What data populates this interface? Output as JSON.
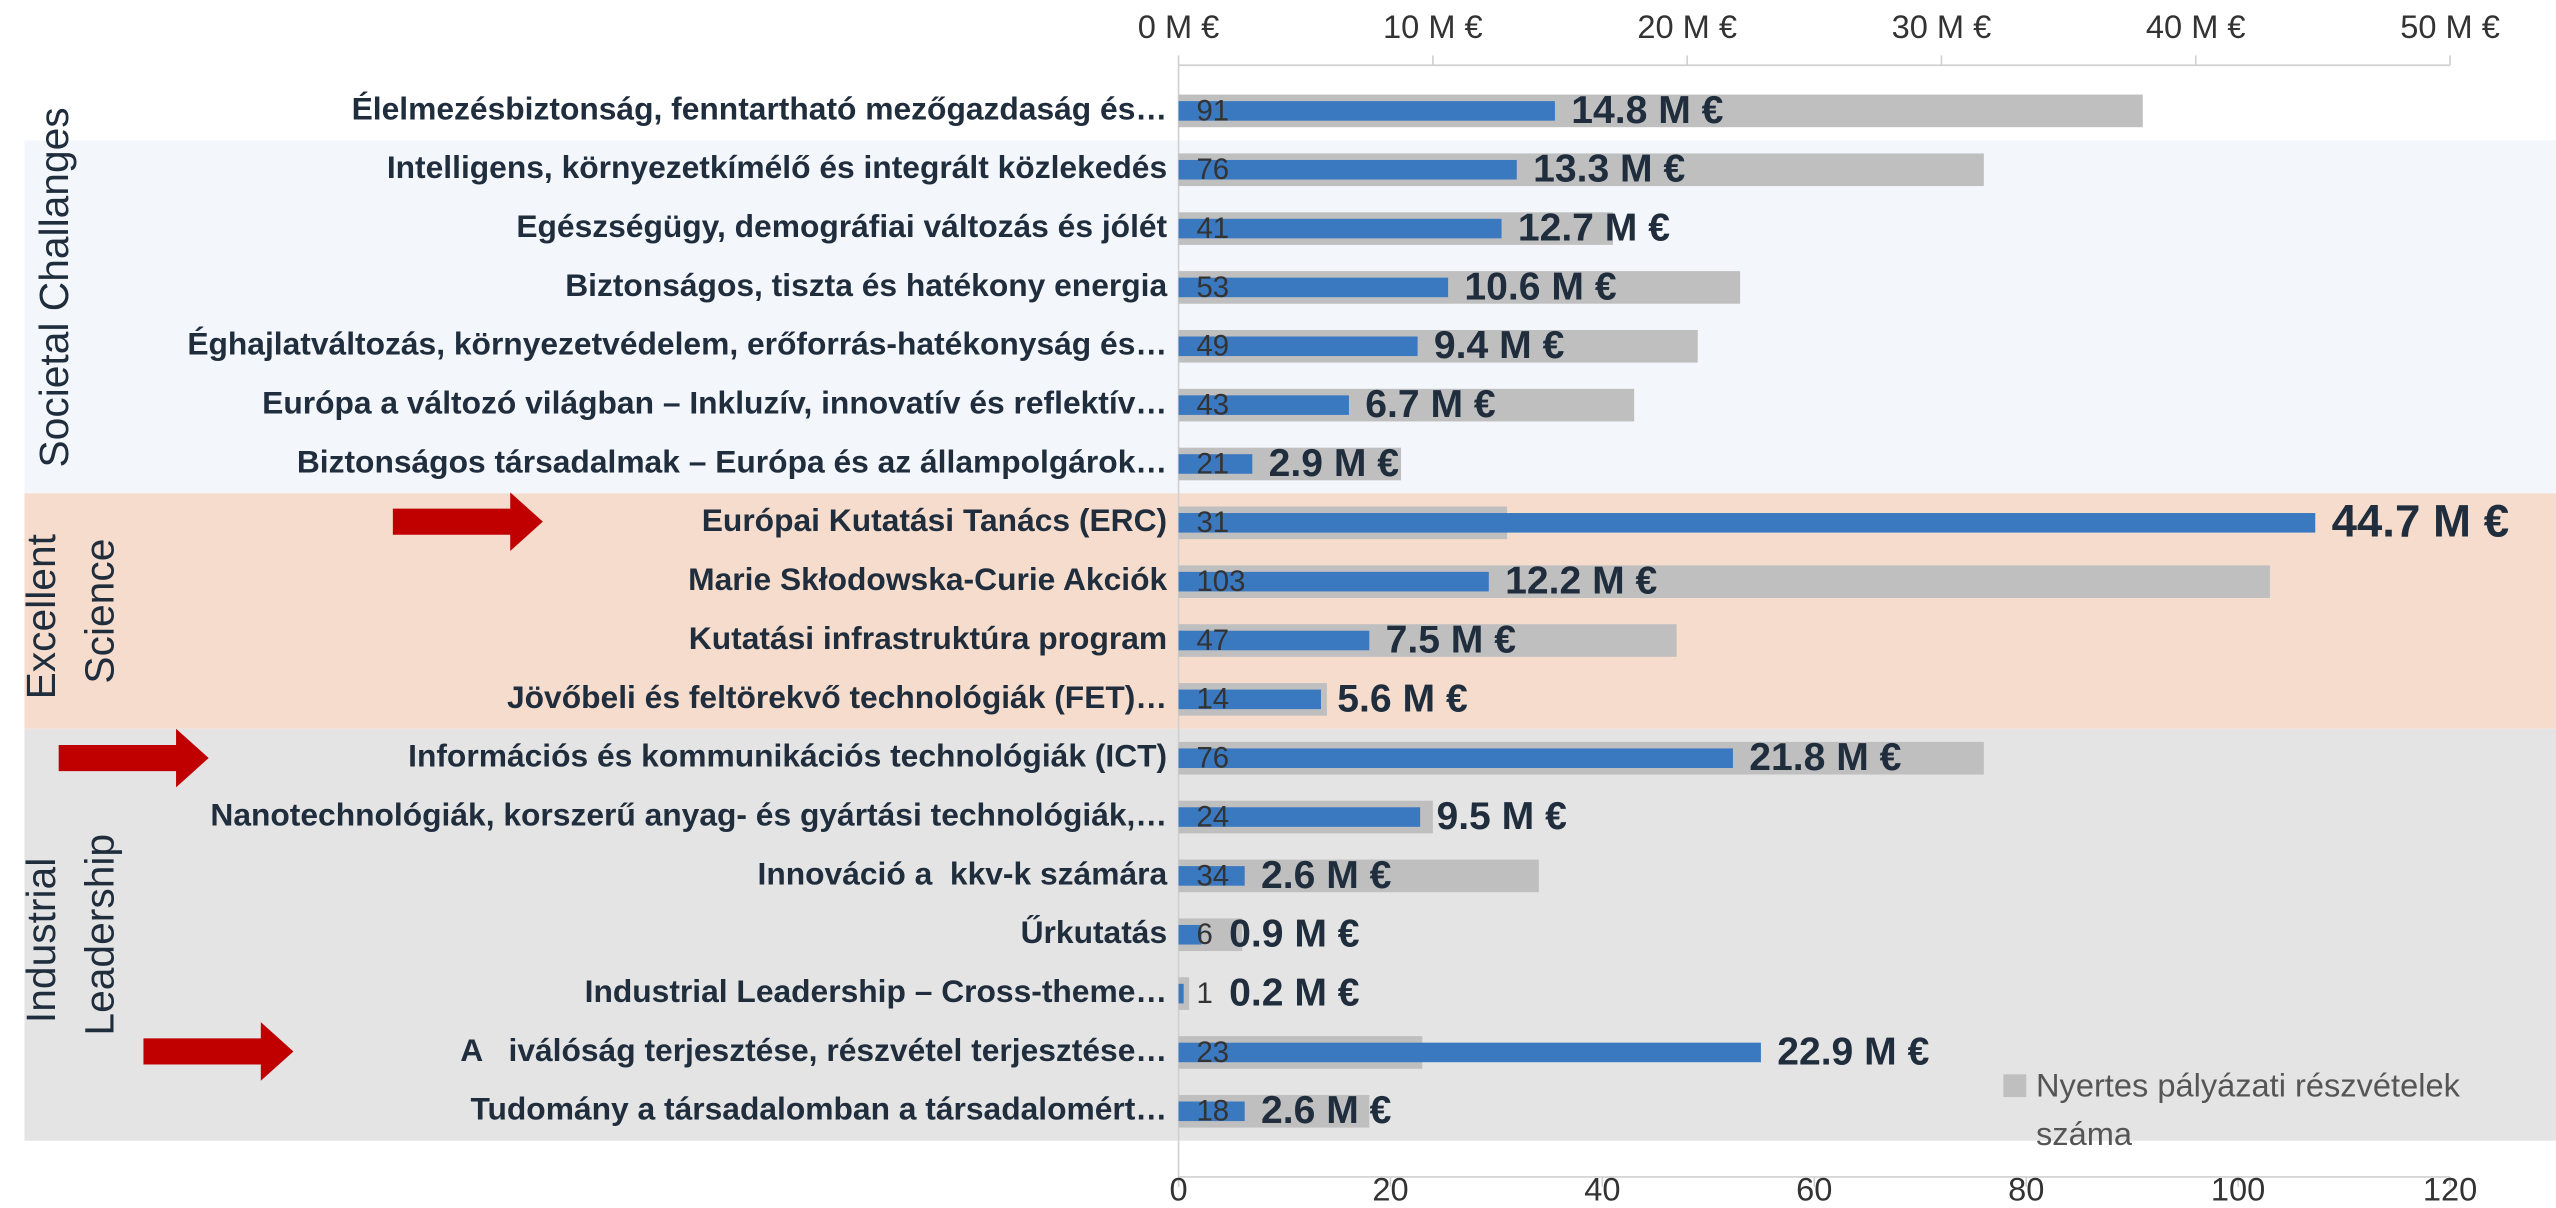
{
  "chart_data": {
    "type": "bar",
    "orientation": "horizontal",
    "categories": [
      "Élelmezésbiztonság, fenntartható mezőgazdaság és…",
      "Intelligens, környezetkímélő és integrált közlekedés",
      "Egészségügy, demográfiai változás és jólét",
      "Biztonságos, tiszta és hatékony energia",
      "Éghajlatváltozás, környezetvédelem, erőforrás-hatékonyság és…",
      "Európa a változó világban – Inkluzív, innovatív és reflektív…",
      "Biztonságos társadalmak – Európa és az állampolgárok…",
      "Európai Kutatási Tanács (ERC)",
      "Marie Skłodowska-Curie Akciók",
      "Kutatási infrastruktúra program",
      "Jövőbeli és feltörekvő technológiák (FET)…",
      "Információs és kommunikációs technológiák (ICT)",
      "Nanotechnológiák, korszerű anyag- és gyártási technológiák,…",
      "Innováció a  kkv-k számára",
      "Űrkutatás",
      "Industrial Leadership – Cross-theme…",
      "A   iválóság terjesztése, részvétel terjesztése…",
      "Tudomány a társadalomban a társadalomért…"
    ],
    "groups": [
      {
        "name": "Societal Challanges",
        "color": "#2e75b6",
        "band_color": "#f3f6fb",
        "categories": [
          0,
          1,
          2,
          3,
          4,
          5,
          6
        ]
      },
      {
        "name": "Excellent Science",
        "color": "#c00000",
        "band_color": "#f5dccc",
        "categories": [
          7,
          8,
          9,
          10
        ]
      },
      {
        "name": "Industrial Leadership",
        "color": "#3a6b1f",
        "band_color": "#e4e4e4",
        "categories": [
          11,
          12,
          13,
          14,
          15,
          16,
          17
        ]
      }
    ],
    "series": [
      {
        "name": "Nyertes pályázati részvételek száma",
        "color": "#bfbfbf",
        "axis": "x2",
        "values": [
          91,
          76,
          41,
          53,
          49,
          43,
          21,
          31,
          103,
          47,
          14,
          76,
          24,
          34,
          6,
          1,
          23,
          18
        ]
      },
      {
        "color": "#3a78c0",
        "axis": "x",
        "values": [
          14.8,
          13.3,
          12.7,
          10.6,
          9.4,
          6.7,
          2.9,
          44.7,
          12.2,
          7.5,
          5.6,
          21.8,
          9.5,
          2.6,
          0.9,
          0.2,
          22.9,
          2.6
        ],
        "value_labels": [
          "14.8 M €",
          "13.3 M €",
          "12.7 M €",
          "10.6 M €",
          "9.4 M €",
          "6.7 M €",
          "2.9 M €",
          "44.7 M €",
          "12.2 M €",
          "7.5 M €",
          "5.6 M €",
          "21.8 M €",
          "9.5 M €",
          "2.6 M €",
          "0.9 M €",
          "0.2 M €",
          "22.9 M €",
          "2.6 M €"
        ]
      }
    ],
    "xlim": [
      0,
      50
    ],
    "xticks": [
      {
        "value": 0,
        "label": "0 M €"
      },
      {
        "value": 10,
        "label": "10 M €"
      },
      {
        "value": 20,
        "label": "20 M €"
      },
      {
        "value": 30,
        "label": "30 M €"
      },
      {
        "value": 40,
        "label": "40 M €"
      },
      {
        "value": 50,
        "label": "50 M €"
      }
    ],
    "x2lim": [
      0,
      120
    ],
    "x2ticks": [
      0,
      20,
      40,
      60,
      80,
      100,
      120
    ],
    "legend": "bottom-right"
  }
}
